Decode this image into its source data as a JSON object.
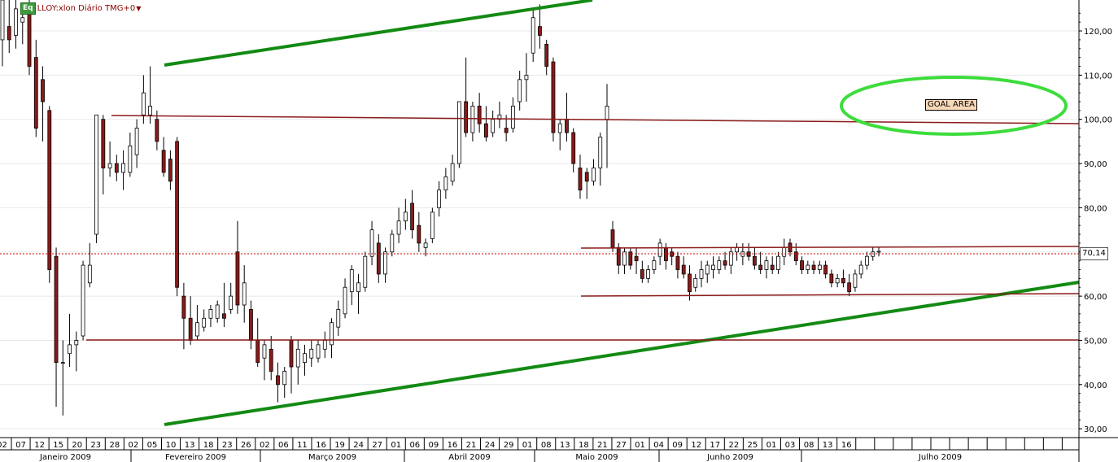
{
  "header": {
    "eq_badge": "Eq",
    "title": "LLOY:xlon Diário TMG+0",
    "menu_icon": "caret-down-icon"
  },
  "annotation": {
    "goal_label": "GOAL AREA"
  },
  "price_tag": "70,14",
  "colors": {
    "up_candle": "#ffffff",
    "down_candle": "#8b1a1a",
    "wick": "#000000",
    "trendline": "#138a13",
    "horizontal_line": "#8b1a1a",
    "goal_ellipse": "#3ddc3d",
    "last_price_line": "#d00000",
    "grid": "#e8e8e8"
  },
  "chart_data": {
    "type": "candlestick",
    "title": "LLOY:xlon Diário TMG+0",
    "y_axis": {
      "min": 28,
      "max": 127,
      "side": "right",
      "tick_values": [
        30,
        40,
        50,
        60,
        70,
        80,
        90,
        100,
        110,
        120
      ],
      "tick_labels": [
        "30,00",
        "40,00",
        "50,00",
        "60,00",
        "70,00",
        "80,00",
        "90,00",
        "100,00",
        "110,00",
        "120,00"
      ]
    },
    "x_axis": {
      "day_labels": [
        "02",
        "07",
        "12",
        "15",
        "20",
        "23",
        "28",
        "02",
        "05",
        "10",
        "13",
        "18",
        "23",
        "26",
        "02",
        "06",
        "11",
        "16",
        "19",
        "24",
        "27",
        "01",
        "06",
        "09",
        "16",
        "21",
        "24",
        "29",
        "01",
        "08",
        "13",
        "18",
        "21",
        "27",
        "01",
        "04",
        "09",
        "12",
        "17",
        "22",
        "25",
        "01",
        "03",
        "08",
        "13",
        "16"
      ],
      "month_labels": [
        "Janeiro 2009",
        "Fevereiro 2009",
        "Março 2009",
        "Abril 2009",
        "Maio 2009",
        "Junho 2009",
        "Julho 2009"
      ]
    },
    "last_price": 70.14,
    "candles": [
      {
        "o": 118,
        "h": 128,
        "l": 112,
        "c": 127
      },
      {
        "o": 121,
        "h": 127,
        "l": 115,
        "c": 118
      },
      {
        "o": 119,
        "h": 128,
        "l": 116,
        "c": 125
      },
      {
        "o": 122,
        "h": 126,
        "l": 117,
        "c": 123
      },
      {
        "o": 124,
        "h": 127,
        "l": 110,
        "c": 112
      },
      {
        "o": 114,
        "h": 118,
        "l": 96,
        "c": 98
      },
      {
        "o": 109,
        "h": 112,
        "l": 95,
        "c": 104
      },
      {
        "o": 102,
        "h": 103,
        "l": 63,
        "c": 66
      },
      {
        "o": 69,
        "h": 71,
        "l": 35,
        "c": 45
      },
      {
        "o": 45,
        "h": 50,
        "l": 33,
        "c": 45
      },
      {
        "o": 47,
        "h": 56,
        "l": 44,
        "c": 49
      },
      {
        "o": 49,
        "h": 52,
        "l": 43,
        "c": 50
      },
      {
        "o": 51,
        "h": 68,
        "l": 50,
        "c": 67
      },
      {
        "o": 63,
        "h": 72,
        "l": 62,
        "c": 67
      },
      {
        "o": 74,
        "h": 101,
        "l": 72,
        "c": 101
      },
      {
        "o": 100,
        "h": 101,
        "l": 83,
        "c": 89
      },
      {
        "o": 89,
        "h": 95,
        "l": 87,
        "c": 90
      },
      {
        "o": 90,
        "h": 92,
        "l": 86,
        "c": 88
      },
      {
        "o": 88,
        "h": 93,
        "l": 84,
        "c": 90
      },
      {
        "o": 88,
        "h": 97,
        "l": 87,
        "c": 94
      },
      {
        "o": 92,
        "h": 100,
        "l": 89,
        "c": 98
      },
      {
        "o": 101,
        "h": 110,
        "l": 99,
        "c": 106
      },
      {
        "o": 101,
        "h": 112,
        "l": 99,
        "c": 103
      },
      {
        "o": 100,
        "h": 102,
        "l": 93,
        "c": 95
      },
      {
        "o": 93,
        "h": 96,
        "l": 87,
        "c": 88
      },
      {
        "o": 91,
        "h": 93,
        "l": 84,
        "c": 86
      },
      {
        "o": 95,
        "h": 96,
        "l": 60,
        "c": 62
      },
      {
        "o": 60,
        "h": 63,
        "l": 48,
        "c": 55
      },
      {
        "o": 55,
        "h": 60,
        "l": 49,
        "c": 50
      },
      {
        "o": 51,
        "h": 58,
        "l": 50,
        "c": 54
      },
      {
        "o": 53,
        "h": 57,
        "l": 52,
        "c": 55
      },
      {
        "o": 55,
        "h": 58,
        "l": 53,
        "c": 57
      },
      {
        "o": 55,
        "h": 59,
        "l": 54,
        "c": 58
      },
      {
        "o": 56,
        "h": 63,
        "l": 53,
        "c": 55
      },
      {
        "o": 57,
        "h": 63,
        "l": 56,
        "c": 60
      },
      {
        "o": 70,
        "h": 77,
        "l": 56,
        "c": 58
      },
      {
        "o": 58,
        "h": 67,
        "l": 54,
        "c": 63
      },
      {
        "o": 57,
        "h": 59,
        "l": 48,
        "c": 50
      },
      {
        "o": 50,
        "h": 55,
        "l": 44,
        "c": 45
      },
      {
        "o": 46,
        "h": 50,
        "l": 41,
        "c": 49
      },
      {
        "o": 48,
        "h": 51,
        "l": 41,
        "c": 43
      },
      {
        "o": 42,
        "h": 45,
        "l": 36,
        "c": 40
      },
      {
        "o": 40,
        "h": 44,
        "l": 37,
        "c": 43
      },
      {
        "o": 50,
        "h": 51,
        "l": 38,
        "c": 44
      },
      {
        "o": 44,
        "h": 50,
        "l": 40,
        "c": 48
      },
      {
        "o": 45,
        "h": 49,
        "l": 42,
        "c": 47
      },
      {
        "o": 46,
        "h": 50,
        "l": 44,
        "c": 48
      },
      {
        "o": 46,
        "h": 50,
        "l": 45,
        "c": 49
      },
      {
        "o": 48,
        "h": 52,
        "l": 46,
        "c": 50
      },
      {
        "o": 49,
        "h": 55,
        "l": 46,
        "c": 54
      },
      {
        "o": 53,
        "h": 59,
        "l": 51,
        "c": 57
      },
      {
        "o": 56,
        "h": 64,
        "l": 55,
        "c": 62
      },
      {
        "o": 61,
        "h": 67,
        "l": 58,
        "c": 66
      },
      {
        "o": 61,
        "h": 65,
        "l": 56,
        "c": 63
      },
      {
        "o": 62,
        "h": 70,
        "l": 61,
        "c": 69
      },
      {
        "o": 69,
        "h": 77,
        "l": 67,
        "c": 75
      },
      {
        "o": 72,
        "h": 74,
        "l": 63,
        "c": 65
      },
      {
        "o": 65,
        "h": 71,
        "l": 63,
        "c": 70
      },
      {
        "o": 70,
        "h": 75,
        "l": 69,
        "c": 74
      },
      {
        "o": 74,
        "h": 80,
        "l": 72,
        "c": 77
      },
      {
        "o": 77,
        "h": 82,
        "l": 75,
        "c": 79
      },
      {
        "o": 81,
        "h": 84,
        "l": 73,
        "c": 75
      },
      {
        "o": 76,
        "h": 79,
        "l": 70,
        "c": 72
      },
      {
        "o": 71,
        "h": 73,
        "l": 69,
        "c": 72
      },
      {
        "o": 73,
        "h": 80,
        "l": 72,
        "c": 79
      },
      {
        "o": 80,
        "h": 86,
        "l": 78,
        "c": 84
      },
      {
        "o": 84,
        "h": 89,
        "l": 82,
        "c": 87
      },
      {
        "o": 86,
        "h": 92,
        "l": 85,
        "c": 90
      },
      {
        "o": 90,
        "h": 104,
        "l": 89,
        "c": 104
      },
      {
        "o": 104,
        "h": 114,
        "l": 96,
        "c": 97
      },
      {
        "o": 97,
        "h": 104,
        "l": 95,
        "c": 103
      },
      {
        "o": 103,
        "h": 106,
        "l": 97,
        "c": 99
      },
      {
        "o": 99,
        "h": 103,
        "l": 95,
        "c": 96
      },
      {
        "o": 97,
        "h": 102,
        "l": 96,
        "c": 100
      },
      {
        "o": 100,
        "h": 104,
        "l": 98,
        "c": 101
      },
      {
        "o": 98,
        "h": 101,
        "l": 95,
        "c": 97
      },
      {
        "o": 98,
        "h": 105,
        "l": 97,
        "c": 103
      },
      {
        "o": 104,
        "h": 111,
        "l": 102,
        "c": 109
      },
      {
        "o": 109,
        "h": 115,
        "l": 104,
        "c": 110
      },
      {
        "o": 115,
        "h": 125,
        "l": 113,
        "c": 123
      },
      {
        "o": 121,
        "h": 126,
        "l": 116,
        "c": 119
      },
      {
        "o": 117,
        "h": 118,
        "l": 110,
        "c": 112
      },
      {
        "o": 113,
        "h": 114,
        "l": 95,
        "c": 97
      },
      {
        "o": 97,
        "h": 100,
        "l": 93,
        "c": 99
      },
      {
        "o": 100,
        "h": 106,
        "l": 95,
        "c": 97
      },
      {
        "o": 97,
        "h": 98,
        "l": 88,
        "c": 90
      },
      {
        "o": 89,
        "h": 92,
        "l": 82,
        "c": 84
      },
      {
        "o": 88,
        "h": 89,
        "l": 82,
        "c": 86
      },
      {
        "o": 86,
        "h": 91,
        "l": 85,
        "c": 89
      },
      {
        "o": 89,
        "h": 97,
        "l": 85,
        "c": 96
      },
      {
        "o": 100,
        "h": 108,
        "l": 89,
        "c": 103
      },
      {
        "o": 75,
        "h": 77,
        "l": 70,
        "c": 71
      },
      {
        "o": 71,
        "h": 72,
        "l": 65,
        "c": 67
      },
      {
        "o": 67,
        "h": 71,
        "l": 65,
        "c": 70
      },
      {
        "o": 70,
        "h": 71,
        "l": 66,
        "c": 67
      },
      {
        "o": 69,
        "h": 71,
        "l": 65,
        "c": 68
      },
      {
        "o": 66,
        "h": 68,
        "l": 63,
        "c": 64
      },
      {
        "o": 64,
        "h": 67,
        "l": 63,
        "c": 66
      },
      {
        "o": 66,
        "h": 69,
        "l": 65,
        "c": 68
      },
      {
        "o": 69,
        "h": 73,
        "l": 67,
        "c": 72
      },
      {
        "o": 71,
        "h": 72,
        "l": 66,
        "c": 68
      },
      {
        "o": 70,
        "h": 71,
        "l": 67,
        "c": 69
      },
      {
        "o": 69,
        "h": 70,
        "l": 64,
        "c": 66
      },
      {
        "o": 67,
        "h": 69,
        "l": 64,
        "c": 65
      },
      {
        "o": 65,
        "h": 67,
        "l": 59,
        "c": 61
      },
      {
        "o": 62,
        "h": 65,
        "l": 61,
        "c": 64
      },
      {
        "o": 64,
        "h": 68,
        "l": 62,
        "c": 66
      },
      {
        "o": 65,
        "h": 68,
        "l": 63,
        "c": 67
      },
      {
        "o": 66,
        "h": 69,
        "l": 64,
        "c": 67
      },
      {
        "o": 66,
        "h": 69,
        "l": 65,
        "c": 68
      },
      {
        "o": 68,
        "h": 70,
        "l": 66,
        "c": 67
      },
      {
        "o": 67,
        "h": 71,
        "l": 65,
        "c": 70
      },
      {
        "o": 70,
        "h": 72,
        "l": 68,
        "c": 71
      },
      {
        "o": 69,
        "h": 72,
        "l": 67,
        "c": 70
      },
      {
        "o": 70,
        "h": 72,
        "l": 68,
        "c": 69
      },
      {
        "o": 69,
        "h": 71,
        "l": 66,
        "c": 67
      },
      {
        "o": 67,
        "h": 70,
        "l": 65,
        "c": 66
      },
      {
        "o": 66,
        "h": 69,
        "l": 64,
        "c": 68
      },
      {
        "o": 67,
        "h": 69,
        "l": 65,
        "c": 66
      },
      {
        "o": 66,
        "h": 70,
        "l": 65,
        "c": 69
      },
      {
        "o": 69,
        "h": 73,
        "l": 67,
        "c": 71
      },
      {
        "o": 72,
        "h": 73,
        "l": 69,
        "c": 70
      },
      {
        "o": 70,
        "h": 72,
        "l": 67,
        "c": 68
      },
      {
        "o": 68,
        "h": 69,
        "l": 65,
        "c": 66
      },
      {
        "o": 66,
        "h": 68,
        "l": 65,
        "c": 67
      },
      {
        "o": 67,
        "h": 68,
        "l": 65,
        "c": 66
      },
      {
        "o": 66,
        "h": 68,
        "l": 65,
        "c": 67
      },
      {
        "o": 67,
        "h": 68,
        "l": 64,
        "c": 65
      },
      {
        "o": 65,
        "h": 66,
        "l": 62,
        "c": 63
      },
      {
        "o": 63,
        "h": 65,
        "l": 62,
        "c": 64
      },
      {
        "o": 64,
        "h": 66,
        "l": 62,
        "c": 63
      },
      {
        "o": 63,
        "h": 65,
        "l": 60,
        "c": 61
      },
      {
        "o": 62,
        "h": 66,
        "l": 61,
        "c": 65
      },
      {
        "o": 65,
        "h": 68,
        "l": 64,
        "c": 67
      },
      {
        "o": 67,
        "h": 70,
        "l": 66,
        "c": 69
      },
      {
        "o": 69,
        "h": 71,
        "l": 68,
        "c": 70
      },
      {
        "o": 70,
        "h": 71,
        "l": 69,
        "c": 70.14
      }
    ]
  }
}
